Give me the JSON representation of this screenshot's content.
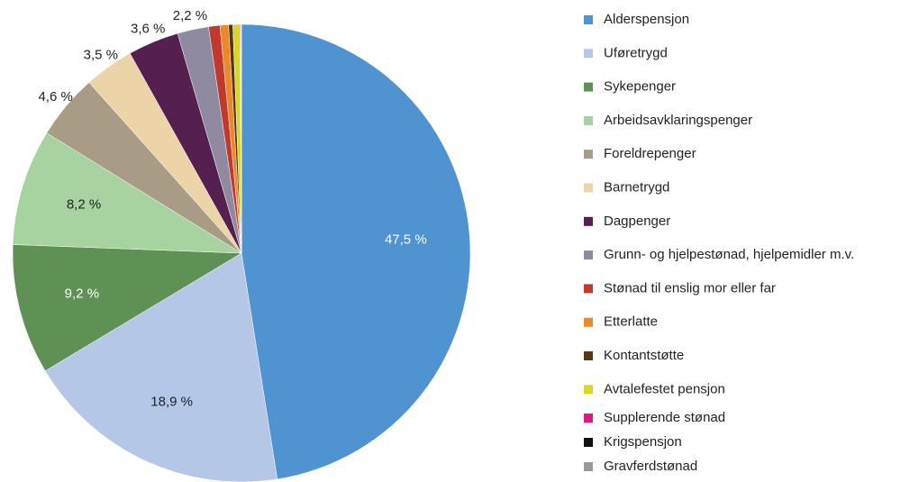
{
  "chart_data": {
    "type": "pie",
    "categories": [
      "Alderspensjon",
      "Uføretrygd",
      "Sykepenger",
      "Arbeidsavklaringspenger",
      "Foreldrepenger",
      "Barnetrygd",
      "Dagpenger",
      "Grunn- og hjelpestønad, hjelpemidler m.v.",
      "Stønad til enslig mor eller far",
      "Etterlatte",
      "Kontantstøtte",
      "Avtalefestet pensjon",
      "Supplerende stønad",
      "Krigspensjon",
      "Gravferdstønad"
    ],
    "values": [
      47.5,
      18.9,
      9.2,
      8.2,
      4.6,
      3.5,
      3.6,
      2.2,
      0.8,
      0.6,
      0.3,
      0.5,
      0.05,
      0.02,
      0.03
    ],
    "value_labels": [
      "47,5 %",
      "18,9 %",
      "9,2 %",
      "8,2 %",
      "4,6 %",
      "3,5 %",
      "3,6 %",
      "2,2 %",
      null,
      null,
      null,
      null,
      null,
      null,
      null
    ],
    "colors": [
      "#4f93d0",
      "#b4c7e7",
      "#5e9153",
      "#a6d3a0",
      "#a89c86",
      "#ecd4a8",
      "#55204f",
      "#8f8a9f",
      "#c0392b",
      "#e8892b",
      "#5a3510",
      "#d8d820",
      "#e0168a",
      "#111111",
      "#999999"
    ],
    "legend": "right"
  }
}
